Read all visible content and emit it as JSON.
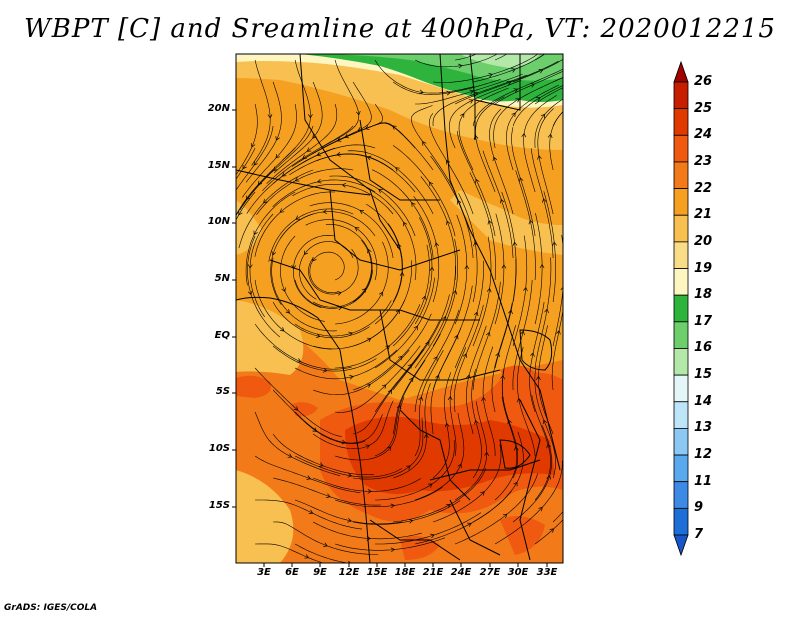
{
  "title": "WBPT [C] and Sreamline at 400hPa, VT: 2020012215",
  "credit": "GrADS: IGES/COLA",
  "map": {
    "lat_ticks": [
      "20N",
      "15N",
      "10N",
      "5N",
      "EQ",
      "5S",
      "10S",
      "15S"
    ],
    "lon_ticks": [
      "3E",
      "6E",
      "9E",
      "12E",
      "15E",
      "18E",
      "21E",
      "24E",
      "27E",
      "30E",
      "33E"
    ]
  },
  "colorbar": {
    "levels": [
      "26",
      "25",
      "24",
      "23",
      "22",
      "21",
      "20",
      "19",
      "18",
      "17",
      "16",
      "15",
      "14",
      "13",
      "12",
      "11",
      "9",
      "7"
    ],
    "colors": [
      "#a00000",
      "#c81e00",
      "#e03a00",
      "#f05a10",
      "#f27a18",
      "#f5a020",
      "#f7c050",
      "#f8dc88",
      "#fdf6c0",
      "#2eb43c",
      "#6ccf6c",
      "#b4e8a8",
      "#e4f6f8",
      "#bee4f8",
      "#8cc8f4",
      "#5aa8ee",
      "#3c8ae4",
      "#1e6ed8",
      "#1656c8"
    ]
  }
}
